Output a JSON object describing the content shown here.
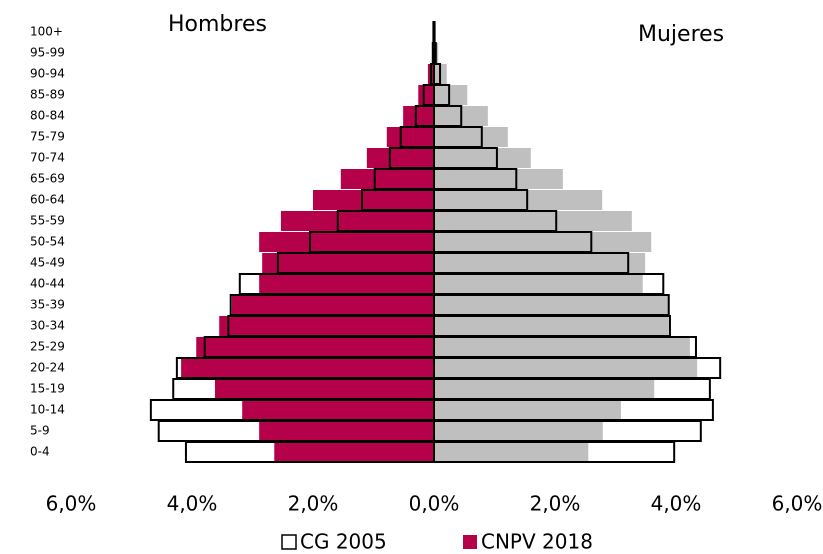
{
  "chart_data": {
    "type": "pyramid",
    "side_labels": [
      "Hombres",
      "Mujeres"
    ],
    "categories": [
      "0-4",
      "5-9",
      "10-14",
      "15-19",
      "20-24",
      "25-29",
      "30-34",
      "35-39",
      "40-44",
      "45-49",
      "50-54",
      "55-59",
      "60-64",
      "65-69",
      "70-74",
      "75-79",
      "80-84",
      "85-89",
      "90-94",
      "95-99",
      "100+"
    ],
    "xlim": [
      -6,
      6
    ],
    "xticks": [
      {
        "value": -6,
        "label": "6,0%"
      },
      {
        "value": -4,
        "label": "4,0%"
      },
      {
        "value": -2,
        "label": "2,0%"
      },
      {
        "value": 0,
        "label": "0,0%"
      },
      {
        "value": 2,
        "label": "2,0%"
      },
      {
        "value": 4,
        "label": "4,0%"
      },
      {
        "value": 6,
        "label": "6,0%"
      }
    ],
    "series": [
      {
        "name": "CG 2005",
        "style": "outline",
        "color_left": "#000000",
        "color_right": "#000000",
        "values_left": [
          4.1,
          4.55,
          4.68,
          4.31,
          4.25,
          3.79,
          3.4,
          3.36,
          3.21,
          2.58,
          2.05,
          1.59,
          1.19,
          0.98,
          0.73,
          0.55,
          0.3,
          0.17,
          0.05,
          0.02,
          0.01
        ],
        "values_right": [
          3.97,
          4.41,
          4.61,
          4.56,
          4.73,
          4.33,
          3.9,
          3.88,
          3.79,
          3.21,
          2.6,
          2.02,
          1.54,
          1.36,
          1.04,
          0.79,
          0.45,
          0.25,
          0.1,
          0.03,
          0.01
        ]
      },
      {
        "name": "CNPV 2018",
        "style": "filled",
        "color_left": "#b5004a",
        "color_right": "#bfbfbf",
        "values_left": [
          2.64,
          2.89,
          3.17,
          3.62,
          4.18,
          3.93,
          3.55,
          3.34,
          2.89,
          2.84,
          2.89,
          2.53,
          2.0,
          1.54,
          1.11,
          0.78,
          0.51,
          0.26,
          0.1,
          0.03,
          0.01
        ],
        "values_right": [
          2.55,
          2.79,
          3.09,
          3.64,
          4.35,
          4.23,
          3.88,
          3.87,
          3.45,
          3.49,
          3.59,
          3.27,
          2.78,
          2.13,
          1.6,
          1.22,
          0.89,
          0.55,
          0.21,
          0.07,
          0.02
        ]
      }
    ]
  }
}
